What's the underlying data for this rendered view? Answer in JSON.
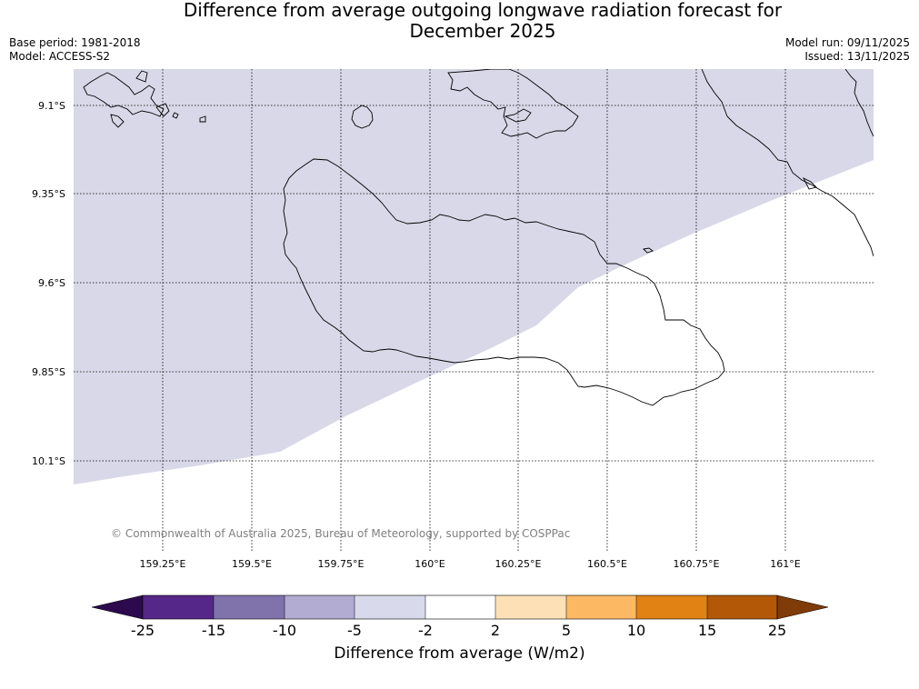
{
  "title": {
    "line1": "Difference from average outgoing longwave radiation forecast for",
    "line2": "December 2025"
  },
  "meta_left": {
    "base_period": "Base period: 1981-2018",
    "model": "Model: ACCESS-S2"
  },
  "meta_right": {
    "model_run": "Model run: 09/11/2025",
    "issued": "Issued: 13/11/2025"
  },
  "map": {
    "lat_ticks": [
      "9.1°S",
      "9.35°S",
      "9.6°S",
      "9.85°S",
      "10.1°S"
    ],
    "lon_ticks": [
      "159.25°E",
      "159.5°E",
      "159.75°E",
      "160°E",
      "160.25°E",
      "160.5°E",
      "160.75°E",
      "161°E"
    ],
    "copyright": "© Commonwealth of Australia 2025, Bureau of Meteorology, supported by COSPPac",
    "shaded_category": "-5 to -2",
    "shaded_color": "#d8d8e8"
  },
  "colorbar": {
    "ticks": [
      "-25",
      "-15",
      "-10",
      "-5",
      "-2",
      "2",
      "5",
      "10",
      "15",
      "25"
    ],
    "colors": [
      "#2d0a4e",
      "#542788",
      "#8073ac",
      "#b2abd2",
      "#d8daeb",
      "#ffffff",
      "#fee0b6",
      "#fdb863",
      "#e08214",
      "#b35806",
      "#7f3b08"
    ],
    "label": "Difference from average (W/m2)"
  }
}
